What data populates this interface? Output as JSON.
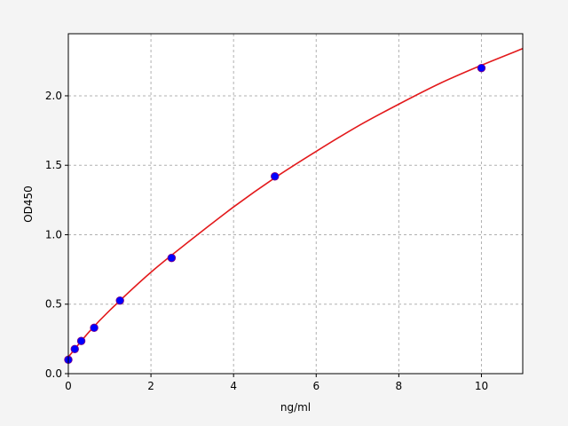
{
  "chart_data": {
    "type": "scatter",
    "title": "",
    "xlabel": "ng/ml",
    "ylabel": "OD450",
    "xlim": [
      0,
      11
    ],
    "ylim": [
      0,
      2.447
    ],
    "grid": true,
    "x_ticks": [
      "0",
      "2",
      "4",
      "6",
      "8",
      "10"
    ],
    "y_ticks": [
      "0.0",
      "0.5",
      "1.0",
      "1.5",
      "2.0"
    ],
    "points": {
      "x": [
        0,
        0.156,
        0.3125,
        0.625,
        1.25,
        2.5,
        5,
        10
      ],
      "y": [
        0.1,
        0.177,
        0.235,
        0.33,
        0.526,
        0.833,
        1.42,
        2.2
      ],
      "color": "#0000ff",
      "edge_color": "#800080"
    },
    "fit_curve": {
      "x": [
        0,
        0.5,
        1,
        2,
        3,
        4,
        5,
        6,
        7,
        8,
        9,
        10,
        11
      ],
      "y": [
        0.12,
        0.3,
        0.455,
        0.73,
        0.97,
        1.2,
        1.41,
        1.6,
        1.78,
        1.94,
        2.09,
        2.22,
        2.34
      ],
      "color": "#e31a1c"
    }
  }
}
